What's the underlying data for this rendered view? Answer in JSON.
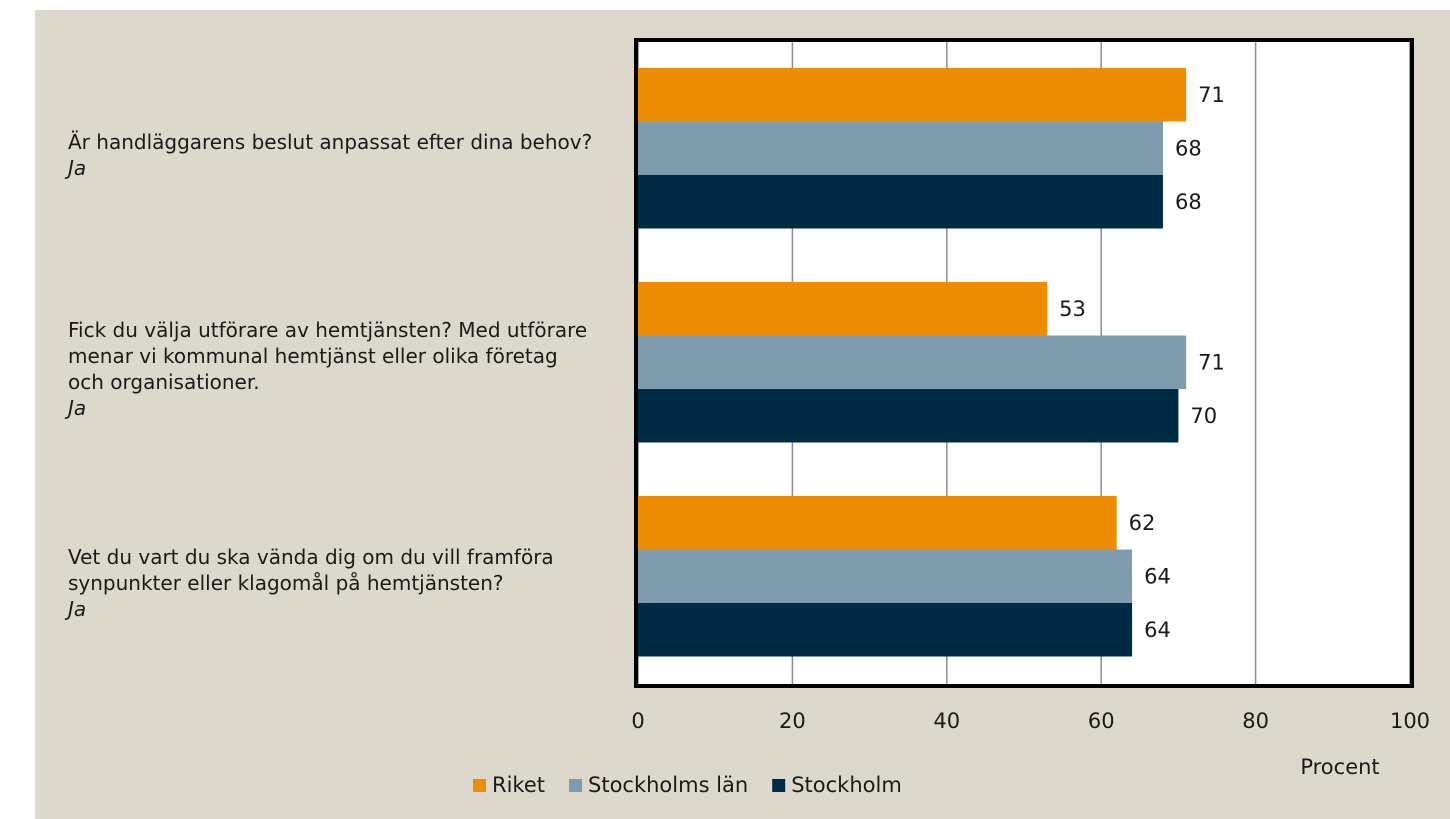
{
  "chart_data": {
    "type": "bar",
    "orientation": "horizontal",
    "categories": [
      "Är handläggarens beslut anpassat efter dina behov?",
      "Fick du välja utförare av hemtjänsten? Med utförare menar vi kommunal hemtjänst eller olika företag och organisationer.",
      "Vet du vart du ska vända dig om du vill framföra synpunkter eller klagomål på hemtjänsten?"
    ],
    "category_answers": [
      "Ja",
      "Ja",
      "Ja"
    ],
    "series": [
      {
        "name": "Riket",
        "color": "#ec8c00",
        "values": [
          71,
          53,
          62
        ]
      },
      {
        "name": "Stockholms län",
        "color": "#7f9bae",
        "values": [
          68,
          71,
          64
        ]
      },
      {
        "name": "Stockholm",
        "color": "#002b45",
        "values": [
          68,
          70,
          64
        ]
      }
    ],
    "xlim": [
      0,
      100
    ],
    "xticks": [
      0,
      20,
      40,
      60,
      80,
      100
    ],
    "xlabel": "Procent",
    "grid": true,
    "legend": "bottom"
  }
}
